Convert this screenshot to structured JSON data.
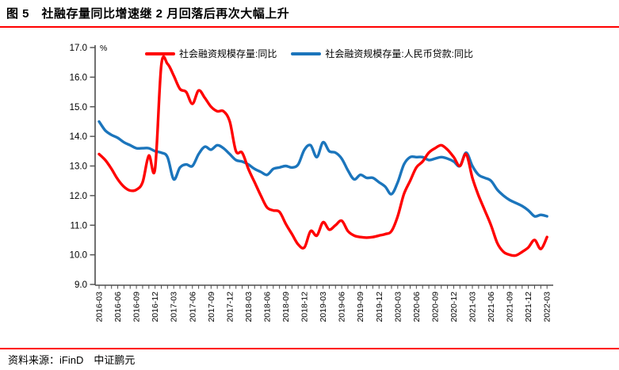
{
  "header": {
    "figure_title": "图 5　社融存量同比增速继 2 月回落后再次大幅上升"
  },
  "footer": {
    "source": "资料来源：iFinD　中证鹏元"
  },
  "colors": {
    "rule_red": "#ff0000",
    "series_tsf_red": "#ff0000",
    "series_loan_blue": "#1b75bc"
  },
  "chart_data": {
    "type": "line",
    "unit_label": "%",
    "ylim": [
      9.0,
      17.0
    ],
    "yticks": [
      17.0,
      16.0,
      15.0,
      14.0,
      13.0,
      12.0,
      11.0,
      10.0,
      9.0
    ],
    "grid": false,
    "legend_position": "top",
    "x_label_every": 3,
    "x": [
      "2016-03",
      "2016-04",
      "2016-05",
      "2016-06",
      "2016-07",
      "2016-08",
      "2016-09",
      "2016-10",
      "2016-11",
      "2016-12",
      "2017-01",
      "2017-02",
      "2017-03",
      "2017-04",
      "2017-05",
      "2017-06",
      "2017-07",
      "2017-08",
      "2017-09",
      "2017-10",
      "2017-11",
      "2017-12",
      "2018-01",
      "2018-02",
      "2018-03",
      "2018-04",
      "2018-05",
      "2018-06",
      "2018-07",
      "2018-08",
      "2018-09",
      "2018-10",
      "2018-11",
      "2018-12",
      "2019-01",
      "2019-02",
      "2019-03",
      "2019-04",
      "2019-05",
      "2019-06",
      "2019-07",
      "2019-08",
      "2019-09",
      "2019-10",
      "2019-11",
      "2019-12",
      "2020-01",
      "2020-02",
      "2020-03",
      "2020-04",
      "2020-05",
      "2020-06",
      "2020-07",
      "2020-08",
      "2020-09",
      "2020-10",
      "2020-11",
      "2020-12",
      "2021-01",
      "2021-02",
      "2021-03",
      "2021-04",
      "2021-05",
      "2021-06",
      "2021-07",
      "2021-08",
      "2021-09",
      "2021-10",
      "2021-11",
      "2021-12",
      "2022-01",
      "2022-02",
      "2022-03"
    ],
    "series": [
      {
        "name": "社会融资规模存量:同比",
        "color": "#ff0000",
        "values": [
          13.4,
          13.2,
          12.9,
          12.55,
          12.3,
          12.17,
          12.2,
          12.45,
          13.35,
          12.9,
          16.4,
          16.45,
          16.05,
          15.6,
          15.5,
          15.1,
          15.55,
          15.3,
          15.0,
          14.85,
          14.85,
          14.5,
          13.5,
          13.45,
          12.9,
          12.45,
          12.0,
          11.6,
          11.5,
          11.45,
          11.05,
          10.7,
          10.35,
          10.25,
          10.8,
          10.65,
          11.1,
          10.85,
          11.0,
          11.15,
          10.8,
          10.65,
          10.6,
          10.58,
          10.6,
          10.65,
          10.7,
          10.8,
          11.3,
          12.05,
          12.5,
          12.95,
          13.15,
          13.45,
          13.6,
          13.7,
          13.55,
          13.3,
          13.0,
          13.4,
          12.6,
          12.0,
          11.5,
          11.0,
          10.4,
          10.1,
          10.0,
          9.98,
          10.1,
          10.25,
          10.5,
          10.2,
          10.6
        ]
      },
      {
        "name": "社会融资规模存量:人民币贷款:同比",
        "color": "#1b75bc",
        "values": [
          14.5,
          14.2,
          14.05,
          13.95,
          13.8,
          13.7,
          13.6,
          13.6,
          13.6,
          13.5,
          13.45,
          13.3,
          12.55,
          12.95,
          13.05,
          13.0,
          13.4,
          13.65,
          13.55,
          13.7,
          13.6,
          13.4,
          13.2,
          13.15,
          13.05,
          12.9,
          12.8,
          12.7,
          12.9,
          12.95,
          13.0,
          12.95,
          13.05,
          13.55,
          13.7,
          13.3,
          13.8,
          13.5,
          13.45,
          13.25,
          12.85,
          12.55,
          12.7,
          12.6,
          12.6,
          12.45,
          12.3,
          12.05,
          12.45,
          13.05,
          13.3,
          13.3,
          13.3,
          13.2,
          13.25,
          13.3,
          13.25,
          13.15,
          13.0,
          13.45,
          13.0,
          12.7,
          12.6,
          12.5,
          12.2,
          12.0,
          11.85,
          11.75,
          11.65,
          11.5,
          11.3,
          11.35,
          11.3
        ]
      }
    ]
  }
}
